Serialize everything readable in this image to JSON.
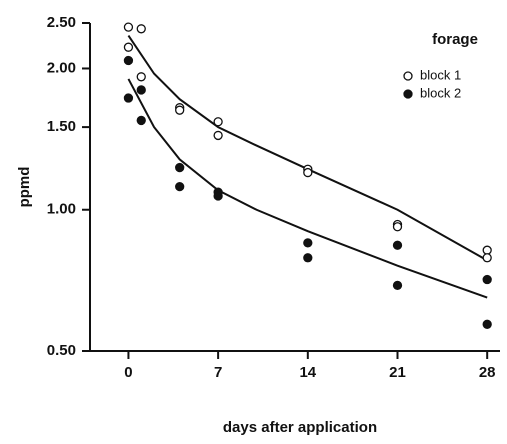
{
  "chart_data": {
    "type": "scatter",
    "log_y": true,
    "x_label": "days after application",
    "y_label": "ppmd",
    "legend_title": "forage",
    "xlim": [
      -3,
      29
    ],
    "xticks": [
      0,
      7,
      14,
      21,
      28
    ],
    "ylim": [
      0.5,
      2.5
    ],
    "yticks": [
      {
        "value": 0.5,
        "label": "0.50"
      },
      {
        "value": 1.0,
        "label": "1.00"
      },
      {
        "value": 1.5,
        "label": "1.50"
      },
      {
        "value": 2.0,
        "label": "2.00"
      },
      {
        "value": 2.5,
        "label": "2.50"
      }
    ],
    "series": [
      {
        "name": "block 1",
        "color": "#111111",
        "marker": "open",
        "x": [
          0,
          0,
          1,
          1,
          4,
          4,
          7,
          7,
          14,
          14,
          21,
          21,
          28,
          28
        ],
        "values": [
          2.45,
          2.22,
          2.43,
          1.92,
          1.65,
          1.63,
          1.54,
          1.44,
          1.22,
          1.2,
          0.93,
          0.92,
          0.82,
          0.79
        ],
        "fit_x": [
          0,
          2,
          4,
          7,
          10,
          14,
          21,
          28
        ],
        "fit_values": [
          2.35,
          1.95,
          1.72,
          1.5,
          1.37,
          1.22,
          1.0,
          0.78
        ]
      },
      {
        "name": "block 2",
        "color": "#111111",
        "marker": "filled",
        "x": [
          0,
          0,
          1,
          1,
          4,
          4,
          7,
          7,
          14,
          14,
          21,
          21,
          28,
          28
        ],
        "values": [
          2.08,
          1.73,
          1.8,
          1.55,
          1.23,
          1.12,
          1.09,
          1.07,
          0.85,
          0.79,
          0.84,
          0.69,
          0.71,
          0.57
        ],
        "fit_x": [
          0,
          2,
          4,
          7,
          10,
          14,
          21,
          28
        ],
        "fit_values": [
          1.9,
          1.5,
          1.28,
          1.1,
          1.0,
          0.9,
          0.76,
          0.65
        ]
      }
    ]
  }
}
